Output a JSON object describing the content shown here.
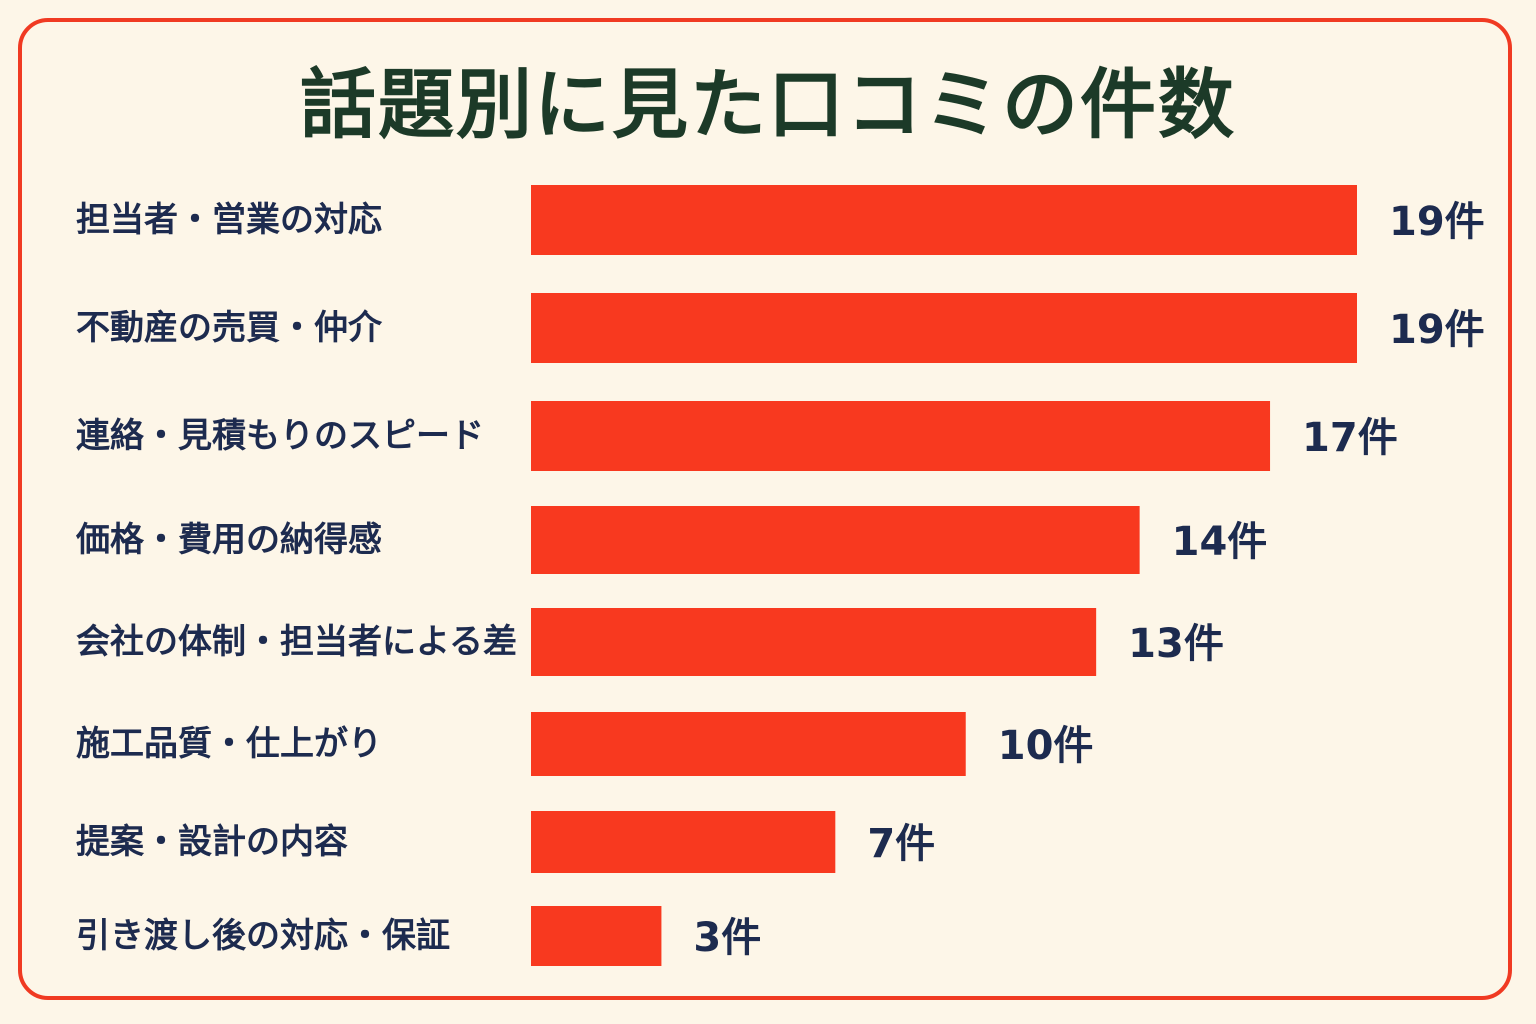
{
  "chart_data": {
    "type": "bar",
    "orientation": "horizontal",
    "title": "話題別に見た口コミの件数",
    "categories": [
      "担当者・営業の対応",
      "不動産の売買・仲介",
      "連絡・見積もりのスピード",
      "価格・費用の納得感",
      "会社の体制・担当者による差",
      "施工品質・仕上がり",
      "提案・設計の内容",
      "引き渡し後の対応・保証"
    ],
    "values": [
      19,
      19,
      17,
      14,
      13,
      10,
      7,
      3
    ],
    "data_labels": [
      "19件",
      "19件",
      "17件",
      "14件",
      "13件",
      "10件",
      "7件",
      "3件"
    ],
    "xlim": [
      0,
      19
    ],
    "grid": false,
    "legend": "none"
  },
  "colors": {
    "bar": "#f8391f",
    "border": "#f03a22",
    "background": "#fdf6e8",
    "title": "#1c3a28",
    "text": "#1d2b4f"
  }
}
